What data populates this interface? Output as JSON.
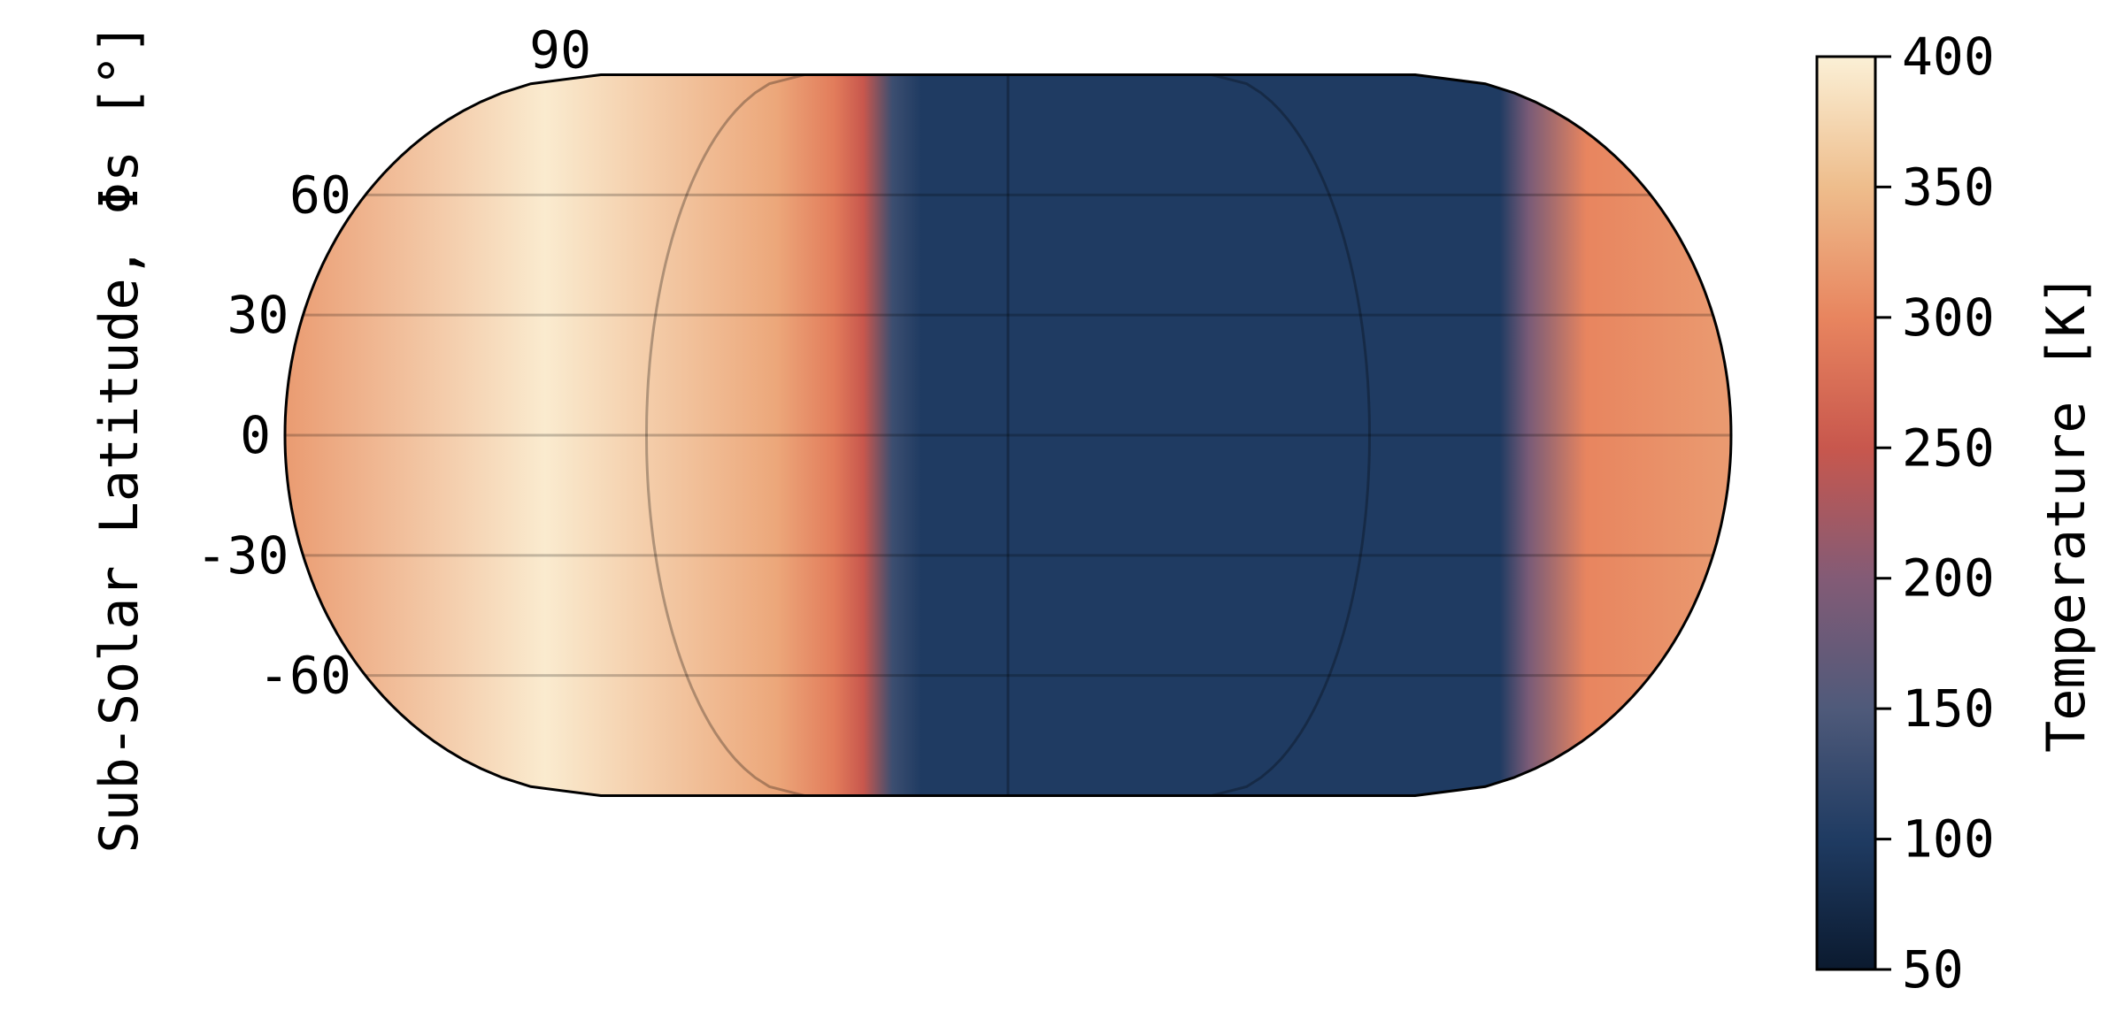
{
  "chart_data": {
    "type": "heatmap",
    "projection": "eckert",
    "title": "",
    "ylabel": "Sub-Solar Latitude, Φs [°]",
    "ylim": [
      -90,
      90
    ],
    "y_ticks": [
      90,
      60,
      30,
      0,
      -30,
      -60
    ],
    "y_tick_labels": [
      "90",
      "60",
      "30",
      "0",
      "-30",
      "-60"
    ],
    "grid": true,
    "gridline_latitudes": [
      60,
      30,
      0,
      -30,
      -60
    ],
    "meridian_fractions": [
      -0.5,
      0,
      0.5
    ],
    "colorbar": {
      "label": "Temperature [K]",
      "range": [
        50,
        400
      ],
      "ticks": [
        400,
        350,
        300,
        250,
        200,
        150,
        100,
        50
      ],
      "tick_labels": [
        "400",
        "350",
        "300",
        "250",
        "200",
        "150",
        "100",
        "50"
      ],
      "colormap_stops": [
        {
          "value": 50,
          "color": "#0b1a2f"
        },
        {
          "value": 100,
          "color": "#1f3b62"
        },
        {
          "value": 150,
          "color": "#4f5a7a"
        },
        {
          "value": 200,
          "color": "#835b76"
        },
        {
          "value": 250,
          "color": "#c8574d"
        },
        {
          "value": 300,
          "color": "#e8855f"
        },
        {
          "value": 350,
          "color": "#eebd8c"
        },
        {
          "value": 400,
          "color": "#fbf0d6"
        }
      ]
    },
    "temperature_profile": {
      "position_fraction": [
        0.0,
        0.18,
        0.34,
        0.38,
        0.4,
        0.42,
        0.44,
        0.46,
        0.84,
        0.86,
        0.9,
        1.0
      ],
      "temperature_K": [
        320,
        395,
        330,
        290,
        250,
        130,
        100,
        100,
        100,
        190,
        300,
        320
      ]
    }
  }
}
